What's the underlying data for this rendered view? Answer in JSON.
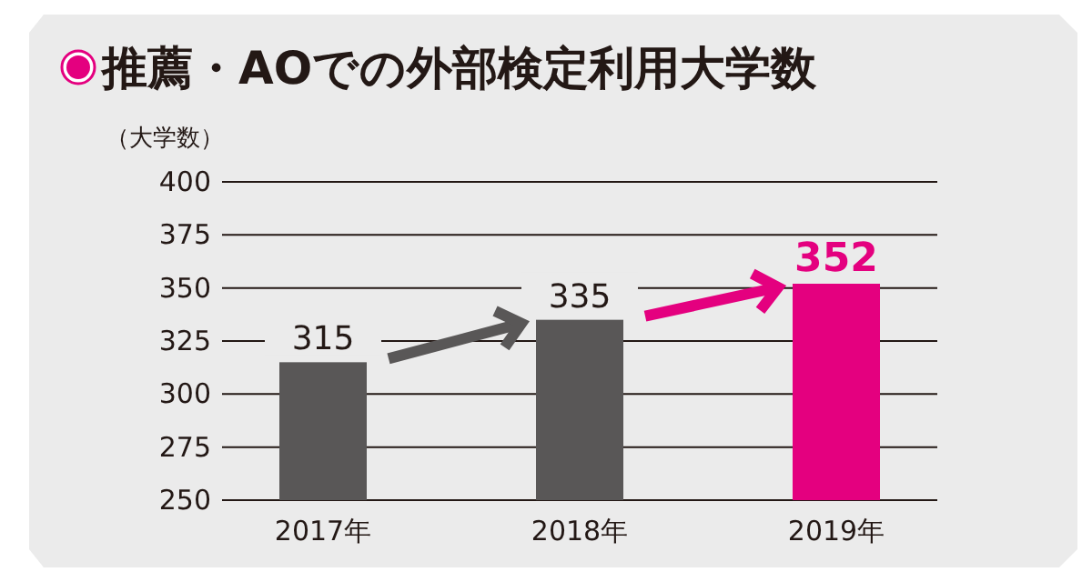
{
  "chart_data": {
    "type": "bar",
    "title": "推薦・AOでの外部検定利用大学数",
    "ylabel": "（大学数）",
    "categories": [
      "2017年",
      "2018年",
      "2019年"
    ],
    "values": [
      315,
      335,
      352
    ],
    "colors": [
      "#595757",
      "#595757",
      "#e4007f"
    ],
    "ylim": [
      250,
      400
    ],
    "yticks": [
      250,
      275,
      300,
      325,
      350,
      375,
      400
    ],
    "grid": "y",
    "data_labels": true
  }
}
